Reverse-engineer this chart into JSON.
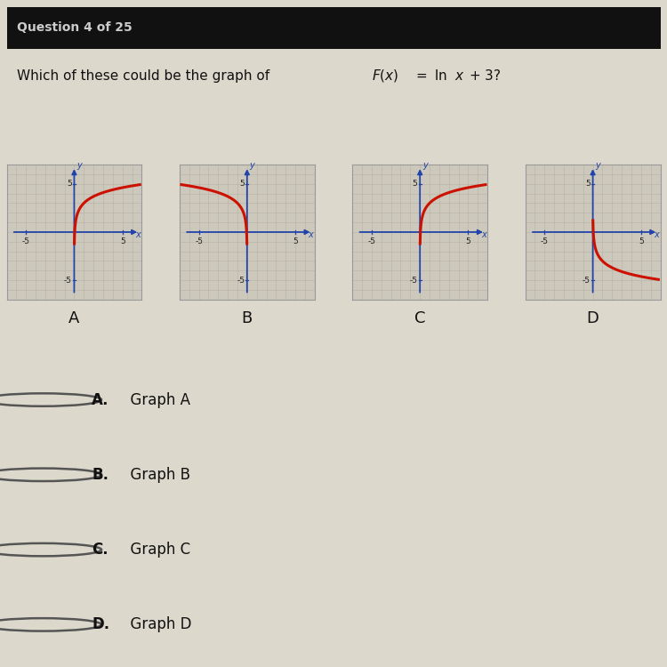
{
  "title_question": "Which of these could be the graph of F(x) = ln x + 3?",
  "header": "Question 4 of 25",
  "graph_labels": [
    "A",
    "B",
    "C",
    "D"
  ],
  "answer_choices": [
    "A.",
    "B.",
    "C.",
    "D."
  ],
  "answer_texts": [
    "Graph A",
    "Graph B",
    "Graph C",
    "Graph D"
  ],
  "bg_color": "#ddd8cc",
  "graph_bg": "#cdc8bc",
  "curve_color": "#cc1100",
  "axis_color": "#2244aa",
  "grid_color": "#b8b2a6",
  "text_color": "#111111",
  "header_color": "#cccccc",
  "header_bg": "#111111",
  "graph_A": {
    "type": "ln_x_plus3_lower"
  },
  "graph_B": {
    "type": "ln_neg_x_plus3_lower"
  },
  "graph_C": {
    "type": "ln_x_plus3_upper"
  },
  "graph_D": {
    "type": "ln_neg_x_minus3"
  }
}
